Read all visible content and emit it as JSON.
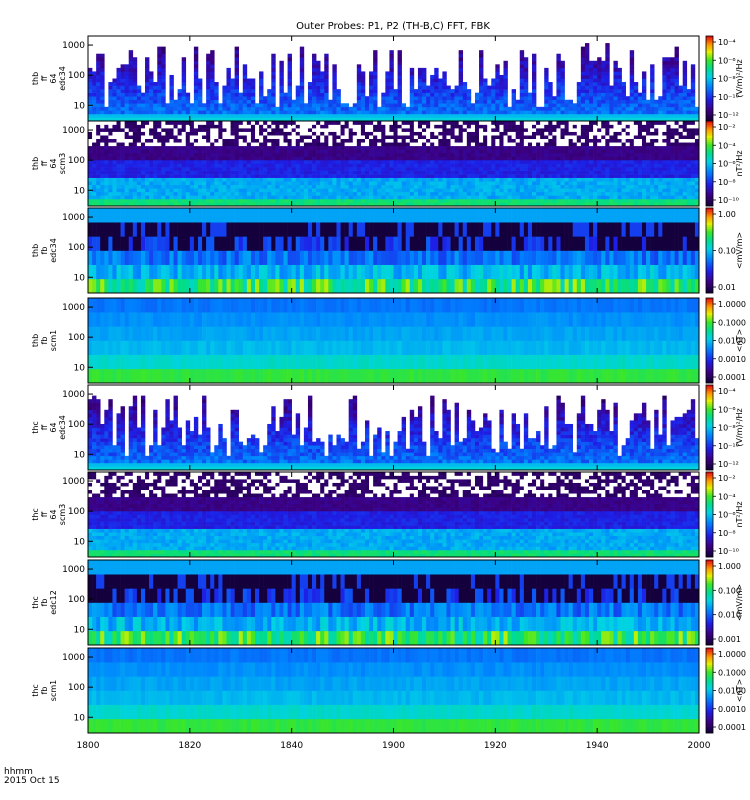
{
  "chart_data": {
    "type": "heatmap",
    "title": "Outer Probes: P1, P2 (TH-B,C) FFT, FBK",
    "x_tick_labels": [
      "1800",
      "1820",
      "1840",
      "1900",
      "1920",
      "1940",
      "2000"
    ],
    "time_label": "hhmm",
    "date_label": "2015 Oct 15",
    "panels": [
      {
        "probe": "thb",
        "line2": "ff",
        "line3": "64",
        "instrument": "edc34",
        "y_ticks": [
          "10",
          "100",
          "1000"
        ],
        "cbar_ticks": [
          "10⁻⁴",
          "10⁻⁶",
          "10⁻⁸",
          "10⁻¹⁰",
          "10⁻¹²"
        ],
        "cbar_label": "(V/m)²/Hz",
        "kind": "edc"
      },
      {
        "probe": "thb",
        "line2": "ff",
        "line3": "64",
        "instrument": "scm3",
        "y_ticks": [
          "10",
          "100",
          "1000"
        ],
        "cbar_ticks": [
          "10⁻²",
          "10⁻⁴",
          "10⁻⁶",
          "10⁻⁸",
          "10⁻¹⁰"
        ],
        "cbar_label": "nT²/Hz",
        "kind": "scm"
      },
      {
        "probe": "thb",
        "line2": "fb",
        "line3": "",
        "instrument": "edc34",
        "y_ticks": [
          "10",
          "100",
          "1000"
        ],
        "cbar_ticks": [
          "1.00",
          "0.10",
          "0.01"
        ],
        "cbar_label": "<mV/m>",
        "kind": "fbedc"
      },
      {
        "probe": "thb",
        "line2": "fb",
        "line3": "",
        "instrument": "scm1",
        "y_ticks": [
          "10",
          "100",
          "1000"
        ],
        "cbar_ticks": [
          "1.0000",
          "0.1000",
          "0.0100",
          "0.0010",
          "0.0001"
        ],
        "cbar_label": "<nT>",
        "kind": "fbscm"
      },
      {
        "probe": "thc",
        "line2": "ff",
        "line3": "64",
        "instrument": "edc34",
        "y_ticks": [
          "10",
          "100",
          "1000"
        ],
        "cbar_ticks": [
          "10⁻⁴",
          "10⁻⁶",
          "10⁻⁸",
          "10⁻¹⁰",
          "10⁻¹²"
        ],
        "cbar_label": "(V/m)²/Hz",
        "kind": "edc"
      },
      {
        "probe": "thc",
        "line2": "ff",
        "line3": "64",
        "instrument": "scm3",
        "y_ticks": [
          "10",
          "100",
          "1000"
        ],
        "cbar_ticks": [
          "10⁻²",
          "10⁻⁴",
          "10⁻⁶",
          "10⁻⁸",
          "10⁻¹⁰"
        ],
        "cbar_label": "nT²/Hz",
        "kind": "scm"
      },
      {
        "probe": "thc",
        "line2": "fb",
        "line3": "",
        "instrument": "edc12",
        "y_ticks": [
          "10",
          "100",
          "1000"
        ],
        "cbar_ticks": [
          "1.000",
          "0.100",
          "0.010",
          "0.001"
        ],
        "cbar_label": "<mV/m>",
        "kind": "fbedc"
      },
      {
        "probe": "thc",
        "line2": "fb",
        "line3": "",
        "instrument": "scm1",
        "y_ticks": [
          "10",
          "100",
          "1000"
        ],
        "cbar_ticks": [
          "1.0000",
          "0.1000",
          "0.0100",
          "0.0010",
          "0.0001"
        ],
        "cbar_label": "<nT>",
        "kind": "fbscm"
      }
    ]
  }
}
